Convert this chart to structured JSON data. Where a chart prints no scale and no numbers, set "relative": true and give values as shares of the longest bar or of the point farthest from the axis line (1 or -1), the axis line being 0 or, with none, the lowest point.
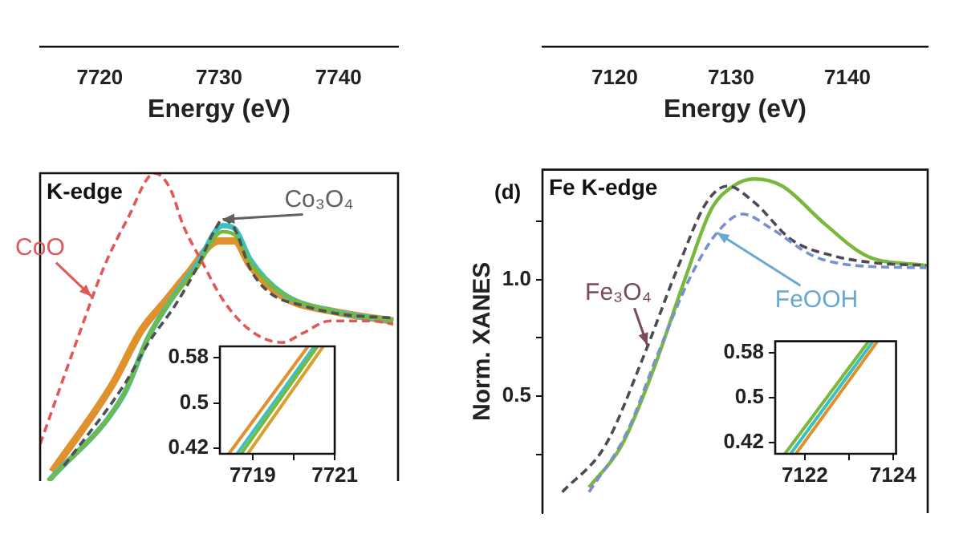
{
  "chart_data": [
    {
      "type": "line",
      "relative": true,
      "title": "K-edge",
      "xlabel": "Energy (eV)",
      "xlim": [
        7715,
        7745
      ],
      "xticks": [
        7720,
        7730,
        7740
      ],
      "series": [
        {
          "color": "#e05858",
          "line_style": "dashed",
          "x": [
            7715,
            7718.3,
            7720.3,
            7722.3,
            7724.6,
            7725.9,
            7727,
            7728.6,
            7730.3,
            7732.6,
            7735.3,
            7737,
            7739.3,
            7742.7,
            7744.6
          ],
          "values": [
            0.12,
            0.48,
            0.69,
            0.85,
            1,
            0.95,
            0.83,
            0.71,
            0.59,
            0.49,
            0.45,
            0.48,
            0.52,
            0.52,
            0.51
          ]
        },
        {
          "color": "#e0902c",
          "line_style": "solid",
          "x": [
            7716,
            7721,
            7723.5,
            7725.4,
            7727.3,
            7730,
            7731.3,
            7732.6,
            7735.3,
            7739.7,
            7744.6
          ],
          "values": [
            0.03,
            0.31,
            0.49,
            0.58,
            0.67,
            0.78,
            0.78,
            0.7,
            0.6,
            0.55,
            0.52
          ]
        },
        {
          "color": "#3cc0c0",
          "line_style": "solid",
          "x": [
            7715.7,
            7722,
            7724.1,
            7726,
            7728.1,
            7730.3,
            7731.3,
            7732.6,
            7735.3,
            7739.7,
            7744.6
          ],
          "values": [
            0,
            0.28,
            0.47,
            0.59,
            0.7,
            0.83,
            0.82,
            0.72,
            0.61,
            0.55,
            0.52
          ]
        },
        {
          "color": "#78b83c",
          "line_style": "solid",
          "x": [
            7715.7,
            7722,
            7724.1,
            7726,
            7728.1,
            7730.3,
            7731.3,
            7732.6,
            7735.3,
            7739.7,
            7744.6
          ],
          "values": [
            0,
            0.28,
            0.47,
            0.59,
            0.69,
            0.81,
            0.8,
            0.71,
            0.61,
            0.55,
            0.52
          ]
        },
        {
          "color": "#505050",
          "line_style": "dashed",
          "x": [
            7717,
            7722,
            7724.1,
            7726.3,
            7728.1,
            7729.7,
            7730.3,
            7731.3,
            7732.6,
            7734.3,
            7737,
            7740.6,
            7744.6
          ],
          "values": [
            0.05,
            0.31,
            0.45,
            0.57,
            0.69,
            0.82,
            0.85,
            0.82,
            0.69,
            0.61,
            0.57,
            0.54,
            0.53
          ]
        }
      ],
      "annotations": [
        {
          "text": "CoO",
          "x": 7719.3,
          "y": 0.6
        },
        {
          "text": "Co₃O₄",
          "x": 7730.3,
          "y": 0.85
        }
      ]
    },
    {
      "type": "line",
      "xlim": [
        7718.2,
        7721
      ],
      "xticks": [
        7719,
        {
          "value": 7720,
          "label": null
        },
        7721
      ],
      "ylim": [
        0.41,
        0.6
      ],
      "yticks": [
        0.42,
        {
          "value": 0.5,
          "label": "0.5"
        },
        0.58
      ],
      "series": [
        {
          "color": "#e0902c",
          "x": [
            7718.42,
            7720.35
          ],
          "values": [
            0.41,
            0.6
          ]
        },
        {
          "color": "#3cc0c0",
          "x": [
            7718.62,
            7720.5
          ],
          "values": [
            0.41,
            0.6
          ]
        },
        {
          "color": "#78b83c",
          "x": [
            7718.72,
            7720.58
          ],
          "values": [
            0.41,
            0.6
          ]
        },
        {
          "color": "#d8a030",
          "x": [
            7718.88,
            7720.72
          ],
          "values": [
            0.41,
            0.6
          ]
        }
      ]
    },
    {
      "type": "line",
      "title": "Fe K-edge",
      "xlabel": "Energy (eV)",
      "ylabel": "Norm. XANES",
      "xlim": [
        7113.8,
        7146.9
      ],
      "xticks": [
        7120,
        7130,
        7140
      ],
      "ylim": [
        0,
        1.47
      ],
      "yticks": [
        {
          "value": 0.25,
          "label": null
        },
        0.5,
        {
          "value": 0.75,
          "label": null
        },
        {
          "value": 1,
          "label": "1.0"
        },
        {
          "value": 1.25,
          "label": null
        }
      ],
      "series": [
        {
          "color": "#7890d0",
          "line_style": "dashed",
          "x": [
            7117.8,
            7121,
            7123.7,
            7126.5,
            7128.8,
            7131,
            7133.4,
            7137.1,
            7140.7,
            7146.8
          ],
          "values": [
            0.09,
            0.34,
            0.68,
            1.01,
            1.2,
            1.28,
            1.22,
            1.1,
            1.06,
            1.05
          ]
        },
        {
          "color": "#78b83c",
          "line_style": "solid",
          "x": [
            7117.8,
            7120.6,
            7123.3,
            7126.1,
            7128.3,
            7130.2,
            7132,
            7134.4,
            7138,
            7141.7,
            7146.8
          ],
          "values": [
            0.11,
            0.29,
            0.61,
            1.01,
            1.3,
            1.4,
            1.43,
            1.4,
            1.24,
            1.1,
            1.06
          ]
        },
        {
          "color": "#504858",
          "line_style": "dashed",
          "x": [
            7115.5,
            7119.2,
            7122.4,
            7125.5,
            7127.9,
            7129.7,
            7132,
            7135.2,
            7138.9,
            7142.6,
            7146.8
          ],
          "values": [
            0.09,
            0.29,
            0.66,
            1.06,
            1.33,
            1.4,
            1.33,
            1.17,
            1.1,
            1.07,
            1.06
          ]
        }
      ],
      "annotations": [
        "(d)",
        {
          "text": "Fe₃O₄",
          "x": 7122.8,
          "y": 0.72
        },
        {
          "text": "FeOOH",
          "x": 7128.8,
          "y": 1.2
        }
      ]
    },
    {
      "type": "line",
      "xlim": [
        7121.33,
        7124.07
      ],
      "xticks": [
        7122,
        {
          "value": 7123,
          "label": null
        },
        7124
      ],
      "ylim": [
        0.4,
        0.6
      ],
      "yticks": [
        0.42,
        {
          "value": 0.5,
          "label": "0.5"
        },
        0.58
      ],
      "series": [
        {
          "color": "#e0902c",
          "x": [
            7121.8,
            7123.65
          ],
          "values": [
            0.4,
            0.6
          ]
        },
        {
          "color": "#3cc0c0",
          "x": [
            7121.68,
            7123.55
          ],
          "values": [
            0.4,
            0.6
          ]
        },
        {
          "color": "#78b83c",
          "x": [
            7121.55,
            7123.45
          ],
          "values": [
            0.4,
            0.6
          ]
        }
      ]
    }
  ]
}
